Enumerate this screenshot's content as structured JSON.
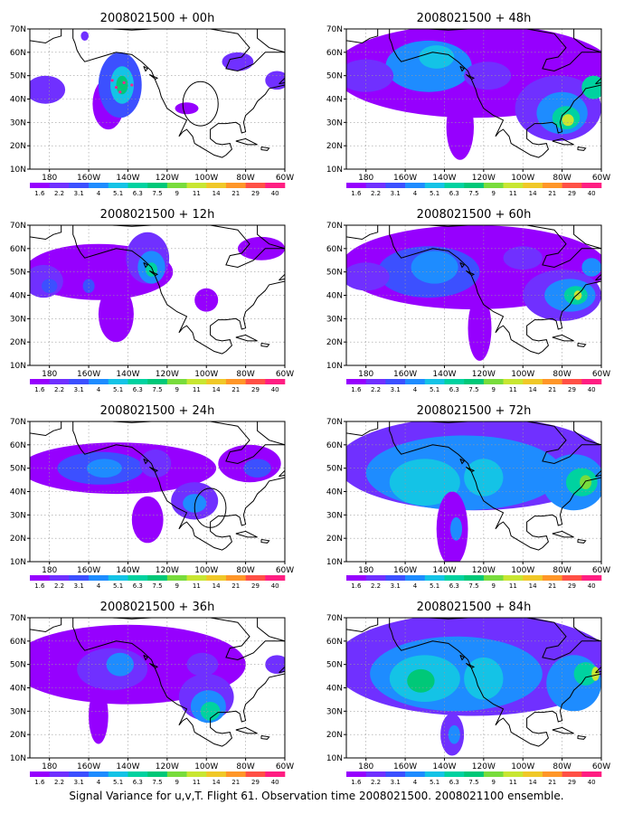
{
  "caption": "Signal Variance for u,v,T. Flight 61. Observation time 2008021500. 2008021100 ensemble.",
  "chart_data": {
    "type": "heatmap",
    "map": "North Pacific / North America, coastlines",
    "xlim": [
      170,
      300
    ],
    "ylim": [
      10,
      70
    ],
    "x_ticks": [
      {
        "value": 180,
        "label": "180"
      },
      {
        "value": 200,
        "label": "160W"
      },
      {
        "value": 220,
        "label": "140W"
      },
      {
        "value": 240,
        "label": "120W"
      },
      {
        "value": 260,
        "label": "100W"
      },
      {
        "value": 280,
        "label": "80W"
      },
      {
        "value": 300,
        "label": "60W"
      }
    ],
    "y_ticks": [
      {
        "value": 10,
        "label": "10N"
      },
      {
        "value": 20,
        "label": "20N"
      },
      {
        "value": 30,
        "label": "30N"
      },
      {
        "value": 40,
        "label": "40N"
      },
      {
        "value": 50,
        "label": "50N"
      },
      {
        "value": 60,
        "label": "60N"
      },
      {
        "value": 70,
        "label": "70N"
      }
    ],
    "grid": true,
    "color_levels": [
      "1.6",
      "2.2",
      "3.1",
      "4",
      "5.1",
      "6.3",
      "7.5",
      "9",
      "11",
      "14",
      "21",
      "29",
      "40"
    ],
    "colors": [
      "#9600fe",
      "#7030ff",
      "#3c50ff",
      "#1e8cff",
      "#14c3e6",
      "#00d2a0",
      "#00c878",
      "#78dc3c",
      "#c8e632",
      "#f0c828",
      "#ff9628",
      "#ff5046",
      "#ff1e82"
    ],
    "panels": [
      {
        "title": "2008021500 + 00h",
        "col": 0,
        "row": 0,
        "blobs": [
          {
            "x": 178,
            "y": 44,
            "rx": 10,
            "ry": 6,
            "v": 3
          },
          {
            "x": 210,
            "y": 38,
            "rx": 8,
            "ry": 11,
            "v": 2
          },
          {
            "x": 216,
            "y": 46,
            "rx": 11,
            "ry": 14,
            "v": 3.5
          },
          {
            "x": 217,
            "y": 46,
            "rx": 6,
            "ry": 8,
            "v": 5.5
          },
          {
            "x": 217,
            "y": 46,
            "rx": 3,
            "ry": 4,
            "v": 8
          },
          {
            "x": 250,
            "y": 36,
            "rx": 6,
            "ry": 2.5,
            "v": 2
          },
          {
            "x": 276,
            "y": 56,
            "rx": 8,
            "ry": 4,
            "v": 2.2
          },
          {
            "x": 296,
            "y": 48,
            "rx": 6,
            "ry": 4,
            "v": 2.5
          },
          {
            "x": 198,
            "y": 67,
            "rx": 2,
            "ry": 2,
            "v": 2.5
          }
        ],
        "circle": {
          "x": 257,
          "y": 38,
          "r": 9
        },
        "dots": [
          {
            "x": 214,
            "y": 45
          },
          {
            "x": 218,
            "y": 47
          },
          {
            "x": 222,
            "y": 46
          },
          {
            "x": 216,
            "y": 43
          },
          {
            "x": 212,
            "y": 48
          }
        ]
      },
      {
        "title": "2008021500 + 48h",
        "col": 1,
        "row": 0,
        "blobs": [
          {
            "x": 235,
            "y": 52,
            "rx": 72,
            "ry": 20,
            "v": 2
          },
          {
            "x": 212,
            "y": 54,
            "rx": 22,
            "ry": 11,
            "v": 4
          },
          {
            "x": 216,
            "y": 58,
            "rx": 9,
            "ry": 5,
            "v": 5.5
          },
          {
            "x": 180,
            "y": 50,
            "rx": 14,
            "ry": 7,
            "v": 3
          },
          {
            "x": 242,
            "y": 50,
            "rx": 12,
            "ry": 6,
            "v": 3
          },
          {
            "x": 228,
            "y": 28,
            "rx": 7,
            "ry": 14,
            "v": 2
          },
          {
            "x": 278,
            "y": 36,
            "rx": 22,
            "ry": 14,
            "v": 2.5
          },
          {
            "x": 280,
            "y": 34,
            "rx": 13,
            "ry": 9,
            "v": 4.5
          },
          {
            "x": 282,
            "y": 32,
            "rx": 7,
            "ry": 5,
            "v": 7
          },
          {
            "x": 283,
            "y": 31,
            "rx": 3,
            "ry": 2.5,
            "v": 11
          },
          {
            "x": 296,
            "y": 45,
            "rx": 6,
            "ry": 5,
            "v": 6.5
          }
        ]
      },
      {
        "title": "2008021500 + 12h",
        "col": 0,
        "row": 1,
        "blobs": [
          {
            "x": 205,
            "y": 50,
            "rx": 38,
            "ry": 12,
            "v": 2
          },
          {
            "x": 177,
            "y": 46,
            "rx": 10,
            "ry": 7,
            "v": 2.2
          },
          {
            "x": 214,
            "y": 32,
            "rx": 9,
            "ry": 12,
            "v": 2
          },
          {
            "x": 230,
            "y": 56,
            "rx": 11,
            "ry": 11,
            "v": 3
          },
          {
            "x": 232,
            "y": 52,
            "rx": 7,
            "ry": 7,
            "v": 4.5
          },
          {
            "x": 232,
            "y": 51,
            "rx": 3,
            "ry": 3,
            "v": 6.5
          },
          {
            "x": 180,
            "y": 44,
            "rx": 4,
            "ry": 3,
            "v": 3.5
          },
          {
            "x": 200,
            "y": 44,
            "rx": 3,
            "ry": 3,
            "v": 3.5
          },
          {
            "x": 260,
            "y": 38,
            "rx": 6,
            "ry": 5,
            "v": 2
          },
          {
            "x": 288,
            "y": 60,
            "rx": 12,
            "ry": 5,
            "v": 2
          }
        ]
      },
      {
        "title": "2008021500 + 60h",
        "col": 1,
        "row": 1,
        "blobs": [
          {
            "x": 235,
            "y": 52,
            "rx": 68,
            "ry": 18,
            "v": 2
          },
          {
            "x": 212,
            "y": 50,
            "rx": 26,
            "ry": 11,
            "v": 3.5
          },
          {
            "x": 215,
            "y": 52,
            "rx": 12,
            "ry": 7,
            "v": 4.5
          },
          {
            "x": 238,
            "y": 26,
            "rx": 6,
            "ry": 14,
            "v": 2
          },
          {
            "x": 280,
            "y": 40,
            "rx": 20,
            "ry": 11,
            "v": 2.5
          },
          {
            "x": 284,
            "y": 40,
            "rx": 13,
            "ry": 7,
            "v": 5
          },
          {
            "x": 287,
            "y": 40,
            "rx": 6,
            "ry": 4,
            "v": 7
          },
          {
            "x": 288,
            "y": 40,
            "rx": 2,
            "ry": 2,
            "v": 11
          },
          {
            "x": 180,
            "y": 48,
            "rx": 12,
            "ry": 6,
            "v": 3
          },
          {
            "x": 260,
            "y": 56,
            "rx": 10,
            "ry": 5,
            "v": 3
          },
          {
            "x": 295,
            "y": 52,
            "rx": 5,
            "ry": 4,
            "v": 4
          }
        ]
      },
      {
        "title": "2008021500 + 24h",
        "col": 0,
        "row": 2,
        "blobs": [
          {
            "x": 215,
            "y": 50,
            "rx": 50,
            "ry": 11,
            "v": 2
          },
          {
            "x": 206,
            "y": 50,
            "rx": 22,
            "ry": 7,
            "v": 3.2
          },
          {
            "x": 208,
            "y": 50,
            "rx": 9,
            "ry": 4,
            "v": 4.5
          },
          {
            "x": 230,
            "y": 28,
            "rx": 8,
            "ry": 10,
            "v": 2
          },
          {
            "x": 234,
            "y": 52,
            "rx": 8,
            "ry": 6,
            "v": 3
          },
          {
            "x": 254,
            "y": 36,
            "rx": 12,
            "ry": 8,
            "v": 2.2
          },
          {
            "x": 254,
            "y": 35,
            "rx": 6,
            "ry": 4,
            "v": 4
          },
          {
            "x": 282,
            "y": 52,
            "rx": 16,
            "ry": 8,
            "v": 2
          },
          {
            "x": 286,
            "y": 50,
            "rx": 7,
            "ry": 4,
            "v": 3.5
          }
        ],
        "circle": {
          "x": 262,
          "y": 33,
          "r": 8
        }
      },
      {
        "title": "2008021500 + 72h",
        "col": 1,
        "row": 2,
        "blobs": [
          {
            "x": 235,
            "y": 52,
            "rx": 70,
            "ry": 20,
            "v": 2.5
          },
          {
            "x": 230,
            "y": 48,
            "rx": 50,
            "ry": 16,
            "v": 4
          },
          {
            "x": 210,
            "y": 44,
            "rx": 18,
            "ry": 10,
            "v": 5.2
          },
          {
            "x": 240,
            "y": 46,
            "rx": 10,
            "ry": 8,
            "v": 5.2
          },
          {
            "x": 224,
            "y": 24,
            "rx": 8,
            "ry": 16,
            "v": 2
          },
          {
            "x": 226,
            "y": 24,
            "rx": 3,
            "ry": 5,
            "v": 4.5
          },
          {
            "x": 286,
            "y": 44,
            "rx": 16,
            "ry": 12,
            "v": 4.5
          },
          {
            "x": 290,
            "y": 44,
            "rx": 8,
            "ry": 6,
            "v": 7
          },
          {
            "x": 292,
            "y": 44,
            "rx": 3,
            "ry": 3,
            "v": 9.5
          }
        ]
      },
      {
        "title": "2008021500 + 36h",
        "col": 0,
        "row": 3,
        "blobs": [
          {
            "x": 220,
            "y": 50,
            "rx": 60,
            "ry": 17,
            "v": 2
          },
          {
            "x": 212,
            "y": 48,
            "rx": 18,
            "ry": 9,
            "v": 3
          },
          {
            "x": 216,
            "y": 50,
            "rx": 7,
            "ry": 5,
            "v": 4.5
          },
          {
            "x": 205,
            "y": 28,
            "rx": 5,
            "ry": 12,
            "v": 2
          },
          {
            "x": 260,
            "y": 36,
            "rx": 14,
            "ry": 10,
            "v": 2.5
          },
          {
            "x": 261,
            "y": 32,
            "rx": 9,
            "ry": 7,
            "v": 4.5
          },
          {
            "x": 262,
            "y": 30,
            "rx": 5,
            "ry": 4,
            "v": 6.5
          },
          {
            "x": 258,
            "y": 50,
            "rx": 8,
            "ry": 5,
            "v": 3
          },
          {
            "x": 296,
            "y": 50,
            "rx": 6,
            "ry": 4,
            "v": 3
          }
        ]
      },
      {
        "title": "2008021500 + 84h",
        "col": 1,
        "row": 3,
        "blobs": [
          {
            "x": 235,
            "y": 50,
            "rx": 72,
            "ry": 22,
            "v": 2.5
          },
          {
            "x": 226,
            "y": 46,
            "rx": 44,
            "ry": 16,
            "v": 4
          },
          {
            "x": 210,
            "y": 44,
            "rx": 18,
            "ry": 10,
            "v": 5.5
          },
          {
            "x": 208,
            "y": 43,
            "rx": 7,
            "ry": 5,
            "v": 8
          },
          {
            "x": 240,
            "y": 44,
            "rx": 10,
            "ry": 9,
            "v": 5.5
          },
          {
            "x": 224,
            "y": 20,
            "rx": 6,
            "ry": 9,
            "v": 2.2
          },
          {
            "x": 225,
            "y": 20,
            "rx": 3,
            "ry": 4,
            "v": 4.5
          },
          {
            "x": 286,
            "y": 42,
            "rx": 14,
            "ry": 12,
            "v": 4.5
          },
          {
            "x": 292,
            "y": 46,
            "rx": 6,
            "ry": 5,
            "v": 7
          },
          {
            "x": 297,
            "y": 46,
            "rx": 2,
            "ry": 3,
            "v": 11
          }
        ]
      }
    ]
  }
}
